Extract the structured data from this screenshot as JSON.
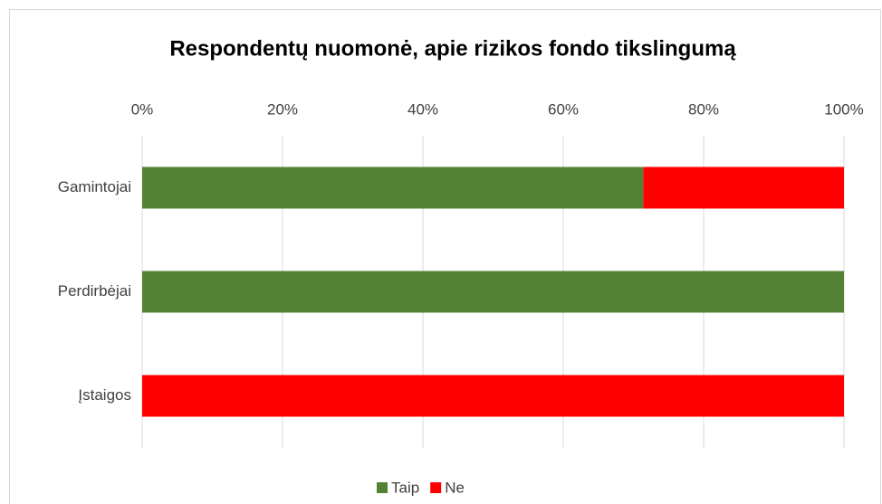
{
  "chart_data": {
    "type": "stacked-bar-horizontal",
    "title": "Respondentų nuomonė, apie rizikos fondo tikslingumą",
    "categories": [
      "Gamintojai",
      "Perdirbėjai",
      "Įstaigos"
    ],
    "series": [
      {
        "name": "Taip",
        "color": "#548235",
        "values": [
          71.4,
          100,
          0
        ]
      },
      {
        "name": "Ne",
        "color": "#ff0000",
        "values": [
          28.6,
          0,
          100
        ]
      }
    ],
    "xlim": [
      0,
      100
    ],
    "xticks": [
      {
        "value": 0,
        "label": "0%"
      },
      {
        "value": 20,
        "label": "20%"
      },
      {
        "value": 40,
        "label": "40%"
      },
      {
        "value": 60,
        "label": "60%"
      },
      {
        "value": 80,
        "label": "80%"
      },
      {
        "value": 100,
        "label": "100%"
      }
    ],
    "grid": true,
    "legend": "bottom"
  }
}
